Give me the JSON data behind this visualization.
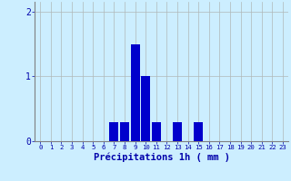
{
  "hours": [
    0,
    1,
    2,
    3,
    4,
    5,
    6,
    7,
    8,
    9,
    10,
    11,
    12,
    13,
    14,
    15,
    16,
    17,
    18,
    19,
    20,
    21,
    22,
    23
  ],
  "values": [
    0,
    0,
    0,
    0,
    0,
    0,
    0,
    0.3,
    0.3,
    1.5,
    1.0,
    0.3,
    0,
    0.3,
    0,
    0.3,
    0,
    0,
    0,
    0,
    0,
    0,
    0,
    0
  ],
  "bar_color": "#0000cc",
  "background_color": "#cceeff",
  "grid_color": "#b0b8b8",
  "xlabel": "Précipitations 1h ( mm )",
  "xlabel_color": "#0000aa",
  "tick_color": "#0000aa",
  "ylim": [
    0,
    2.15
  ],
  "yticks": [
    0,
    1,
    2
  ],
  "xlim": [
    -0.5,
    23.5
  ],
  "bar_width": 0.85,
  "figsize": [
    3.2,
    2.0
  ],
  "dpi": 100
}
